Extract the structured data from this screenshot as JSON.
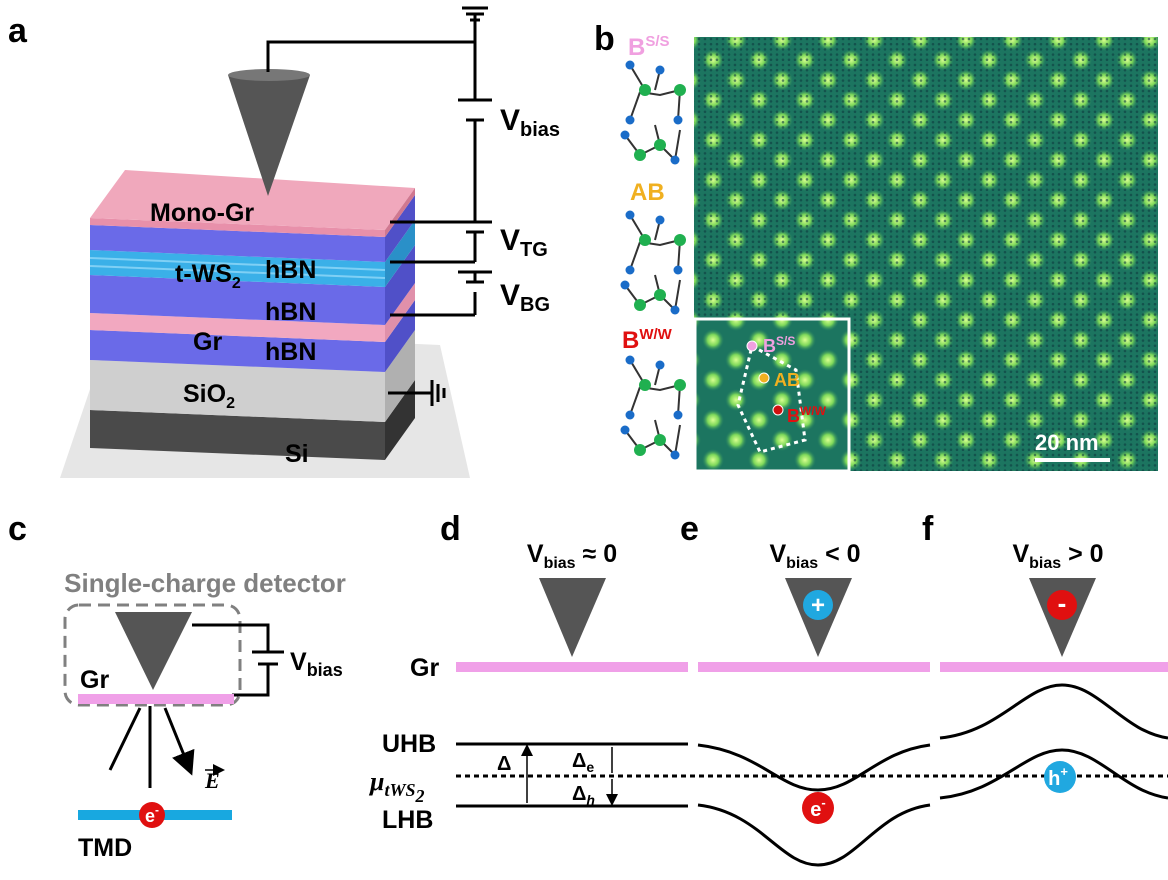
{
  "panel_labels": [
    "a",
    "b",
    "c",
    "d",
    "e",
    "f"
  ],
  "panel_a": {
    "layers": {
      "mono_gr": "Mono-Gr",
      "tws2": {
        "main": "t-WS",
        "sub": "2"
      },
      "hbn_top": "hBN",
      "hbn_mid": "hBN",
      "gr": "Gr",
      "hbn_bot": "hBN",
      "sio2": {
        "main": "SiO",
        "sub": "2"
      },
      "si": "Si"
    },
    "voltages": {
      "bias": {
        "main": "V",
        "sub": "bias"
      },
      "tg": {
        "main": "V",
        "sub": "TG"
      },
      "bg": {
        "main": "V",
        "sub": "BG"
      }
    }
  },
  "panel_b": {
    "stackings": [
      {
        "main": "B",
        "sup": "S/S"
      },
      {
        "main": "AB"
      },
      {
        "main": "B",
        "sup": "W/W"
      }
    ],
    "inset_labels": [
      {
        "main": "B",
        "sup": "S/S"
      },
      {
        "main": "AB"
      },
      {
        "main": "B",
        "sup": "W/W"
      }
    ],
    "scale_bar": "20 nm"
  },
  "panel_c": {
    "title": "Single-charge detector",
    "gr": "Gr",
    "vbias": {
      "main": "V",
      "sub": "bias"
    },
    "field": "E",
    "tmd": "TMD",
    "electron": {
      "main": "e",
      "sup": "-"
    }
  },
  "panel_d": {
    "condition": {
      "main": "V",
      "sub": "bias",
      "rest": " ≈ 0"
    },
    "gr": "Gr",
    "uhb": "UHB",
    "mu": {
      "main": "μ",
      "sub": "tWS",
      "subsub": "2"
    },
    "lhb": "LHB",
    "gap": "Δ",
    "gap_e": {
      "main": "Δ",
      "sub": "e"
    },
    "gap_h": {
      "main": "Δ",
      "sub": "h"
    }
  },
  "panel_e": {
    "condition": {
      "main": "V",
      "sub": "bias",
      "rest": " < 0"
    },
    "tip_charge": "+",
    "carrier": {
      "main": "e",
      "sup": "-"
    }
  },
  "panel_f": {
    "condition": {
      "main": "V",
      "sub": "bias",
      "rest": " > 0"
    },
    "tip_charge": "-",
    "carrier": {
      "main": "h",
      "sup": "+"
    }
  }
}
